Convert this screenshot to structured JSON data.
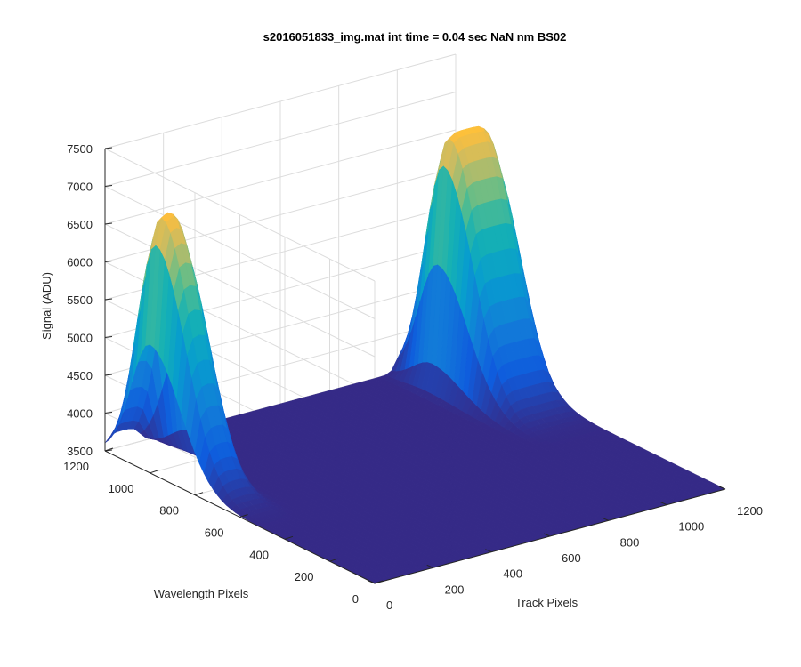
{
  "chart_data": {
    "type": "surface",
    "title": "s2016051833_img.mat int time = 0.04 sec  NaN nm BS02",
    "xlabel": "Track Pixels",
    "ylabel": "Wavelength Pixels",
    "zlabel": "Signal (ADU)",
    "xlim": [
      0,
      1200
    ],
    "ylim": [
      0,
      1200
    ],
    "zlim": [
      3500,
      7500
    ],
    "xticks": [
      "0",
      "200",
      "400",
      "600",
      "800",
      "1000",
      "1200"
    ],
    "yticks": [
      "0",
      "200",
      "400",
      "600",
      "800",
      "1000",
      "1200"
    ],
    "zticks": [
      "3500",
      "4000",
      "4500",
      "5000",
      "5500",
      "6000",
      "6500",
      "7000",
      "7500"
    ],
    "colormap": "parula",
    "grid": true,
    "baseline_signal": 3500,
    "peaks": [
      {
        "track_pixel_range": [
          0,
          120
        ],
        "peak_wavelength_pixel": 1000,
        "peak_signal": 6900
      },
      {
        "track_pixel_range": [
          1000,
          1200
        ],
        "peak_wavelength_pixel": 1020,
        "peak_signal": 6880
      }
    ],
    "colors": {
      "low": "#352a87",
      "mid": "#0f9bd4",
      "high": "#f9fb0e"
    }
  }
}
